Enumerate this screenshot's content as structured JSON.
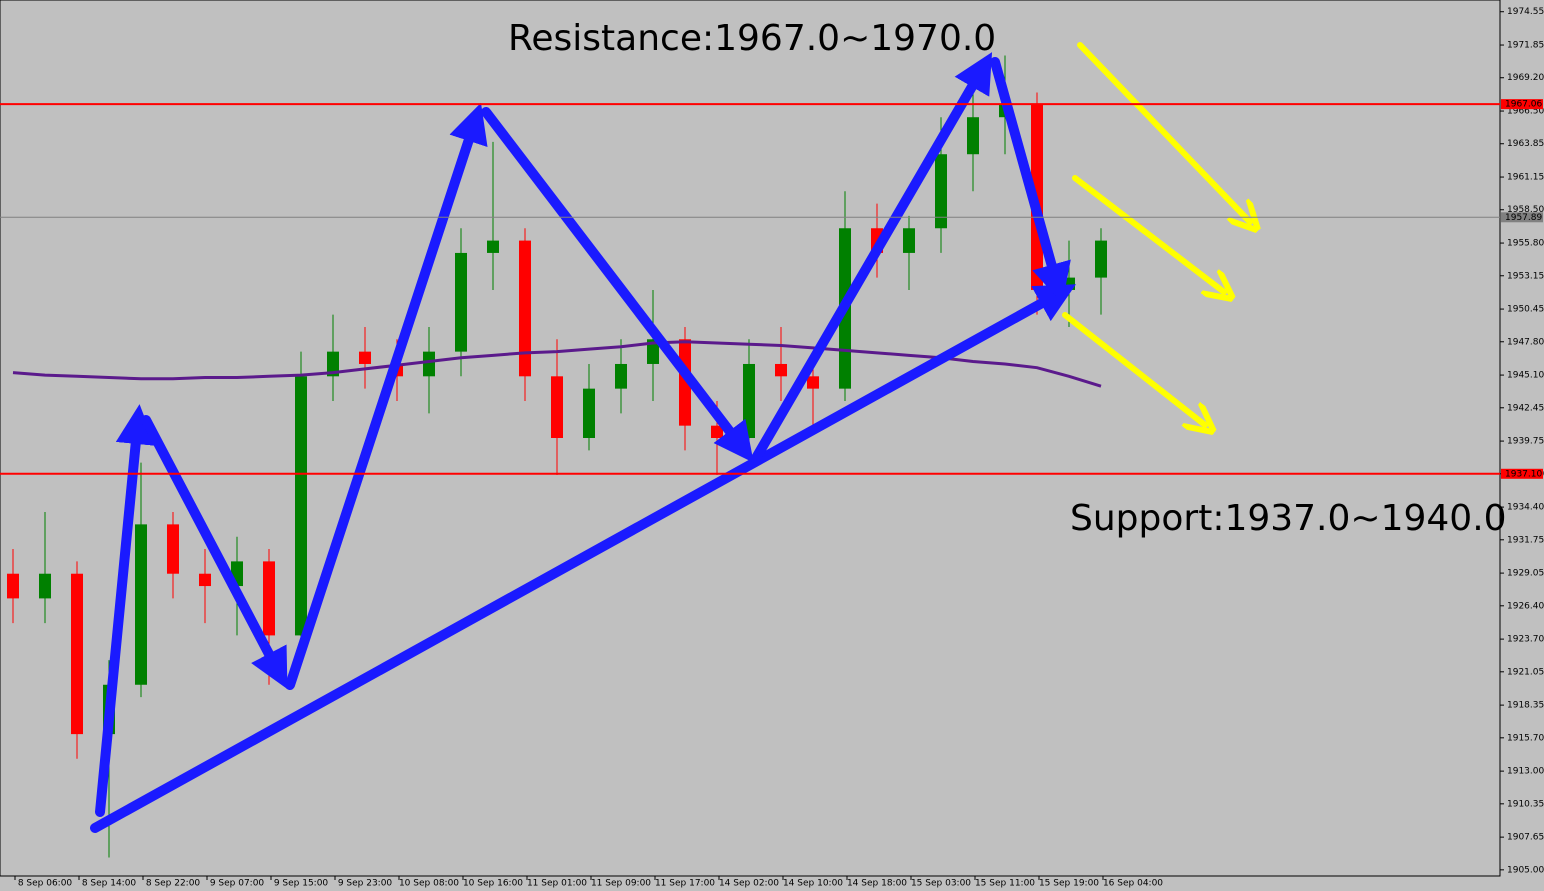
{
  "chart_data": {
    "type": "candlestick",
    "annotations": [
      "Resistance:1967.0~1970.0",
      "Support:1937.0~1940.0"
    ],
    "categories": [
      null,
      "8 Sep 06:00",
      null,
      "8 Sep 14:00",
      null,
      "8 Sep 22:00",
      null,
      "9 Sep 07:00",
      null,
      "9 Sep 15:00",
      null,
      "9 Sep 23:00",
      null,
      "10 Sep 08:00",
      null,
      "10 Sep 16:00",
      null,
      "11 Sep 01:00",
      null,
      "11 Sep 09:00",
      null,
      "11 Sep 17:00",
      null,
      "14 Sep 02:00",
      null,
      "14 Sep 10:00",
      null,
      "14 Sep 18:00",
      null,
      "15 Sep 03:00",
      null,
      "15 Sep 11:00",
      null,
      "15 Sep 19:00",
      null,
      "16 Sep 04:00"
    ],
    "open": [
      1929,
      1927,
      1929,
      1916,
      1920,
      1933,
      1929,
      1928,
      1930,
      1924,
      1945,
      1947,
      1946,
      1945,
      1947,
      1955,
      1956,
      1945,
      1940,
      1944,
      1946,
      1948,
      1941,
      1940,
      1946,
      1945,
      1944,
      1957,
      1955,
      1957,
      1963,
      1966,
      1967,
      1952,
      1953,
      null
    ],
    "high": [
      1931,
      1934,
      1930,
      1922,
      1938,
      1934,
      1931,
      1932,
      1931,
      1947,
      1950,
      1949,
      1948,
      1949,
      1957,
      1964,
      1957,
      1948,
      1946,
      1948,
      1952,
      1949,
      1943,
      1948,
      1949,
      1947,
      1960,
      1959,
      1958,
      1966,
      1969,
      1971,
      1968,
      1956,
      1957,
      null
    ],
    "low": [
      1925,
      1925,
      1914,
      1906,
      1919,
      1927,
      1925,
      1924,
      1920,
      1922,
      1943,
      1944,
      1943,
      1942,
      1945,
      1952,
      1943,
      1937,
      1939,
      1942,
      1943,
      1939,
      1937,
      1939,
      1943,
      1941,
      1943,
      1953,
      1952,
      1955,
      1960,
      1963,
      1950,
      1949,
      1950,
      null
    ],
    "close": [
      1927,
      1929,
      1916,
      1920,
      1933,
      1929,
      1928,
      1930,
      1924,
      1945,
      1947,
      1946,
      1945,
      1947,
      1955,
      1956,
      1945,
      1940,
      1944,
      1946,
      1948,
      1941,
      1940,
      1946,
      1945,
      1944,
      1957,
      1955,
      1957,
      1963,
      1966,
      1967,
      1952,
      1953,
      1956,
      null
    ],
    "up_color": "#008000",
    "down_color": "#ff0000",
    "series": [
      {
        "color": "#5b1a8c",
        "values": [
          1945.3,
          1945.1,
          1945.0,
          1944.9,
          1944.8,
          1944.8,
          1944.9,
          1944.9,
          1945.0,
          1945.1,
          1945.3,
          1945.6,
          1945.9,
          1946.2,
          1946.5,
          1946.7,
          1946.9,
          1947.0,
          1947.2,
          1947.4,
          1947.7,
          1947.8,
          1947.7,
          1947.6,
          1947.5,
          1947.3,
          1947.1,
          1946.9,
          1946.7,
          1946.5,
          1946.2,
          1946.0,
          1945.7,
          1945.0,
          1944.2,
          null
        ]
      }
    ],
    "levels": [
      {
        "value": 1967.06,
        "label": "1967.06",
        "color": "#ff0000"
      },
      {
        "value": 1937.1,
        "label": "1937.10",
        "color": "#ff0000"
      },
      {
        "value": 1957.89,
        "label": "1957.89",
        "color": "#808080"
      }
    ],
    "ylim": [
      1904.5,
      1975.5
    ],
    "yticks": [
      1974.55,
      1971.85,
      {
        "value": 1969.2,
        "label": "1969.20"
      },
      {
        "value": 1966.5,
        "label": "1966.50"
      },
      1963.85,
      1961.15,
      {
        "value": 1958.5,
        "label": "1958.50"
      },
      {
        "value": 1955.8,
        "label": "1955.80"
      },
      1953.15,
      1950.45,
      {
        "value": 1947.8,
        "label": "1947.80"
      },
      {
        "value": 1945.1,
        "label": "1945.10"
      },
      1942.45,
      1939.75,
      {
        "value": 1937.1,
        "label": "1937.10"
      },
      {
        "value": 1934.4,
        "label": "1934.40"
      },
      1931.75,
      1929.05,
      {
        "value": 1926.4,
        "label": "1926.40"
      },
      {
        "value": 1923.7,
        "label": "1923.70"
      },
      1921.05,
      1918.35,
      {
        "value": 1915.7,
        "label": "1915.70"
      },
      {
        "value": 1913.0,
        "label": "1913.00"
      },
      1910.35,
      1907.65,
      {
        "value": 1905.0,
        "label": "1905.00"
      }
    ]
  }
}
